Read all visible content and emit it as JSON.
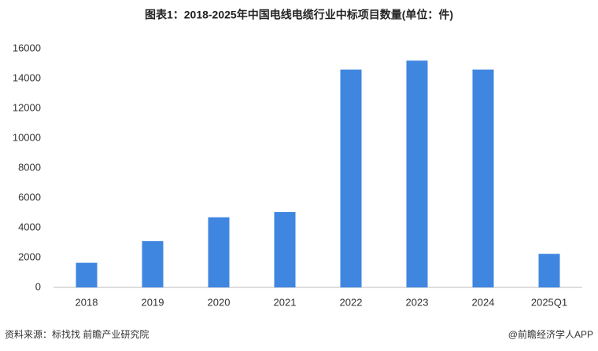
{
  "chart_data": {
    "type": "bar",
    "title": "图表1：2018-2025年中国电线电缆行业中标项目数量(单位：件)",
    "categories": [
      "2018",
      "2019",
      "2020",
      "2021",
      "2022",
      "2023",
      "2024",
      "2025Q1"
    ],
    "values": [
      1650,
      3100,
      4700,
      5050,
      14600,
      15200,
      14600,
      2250
    ],
    "color": "#3f86e0",
    "ylim": [
      0,
      16000
    ],
    "yticks": [
      0,
      2000,
      4000,
      6000,
      8000,
      10000,
      12000,
      14000,
      16000
    ],
    "grid": false
  },
  "footer": {
    "source": "资料来源：标找找 前瞻产业研究院",
    "credit": "@前瞻经济学人APP"
  }
}
